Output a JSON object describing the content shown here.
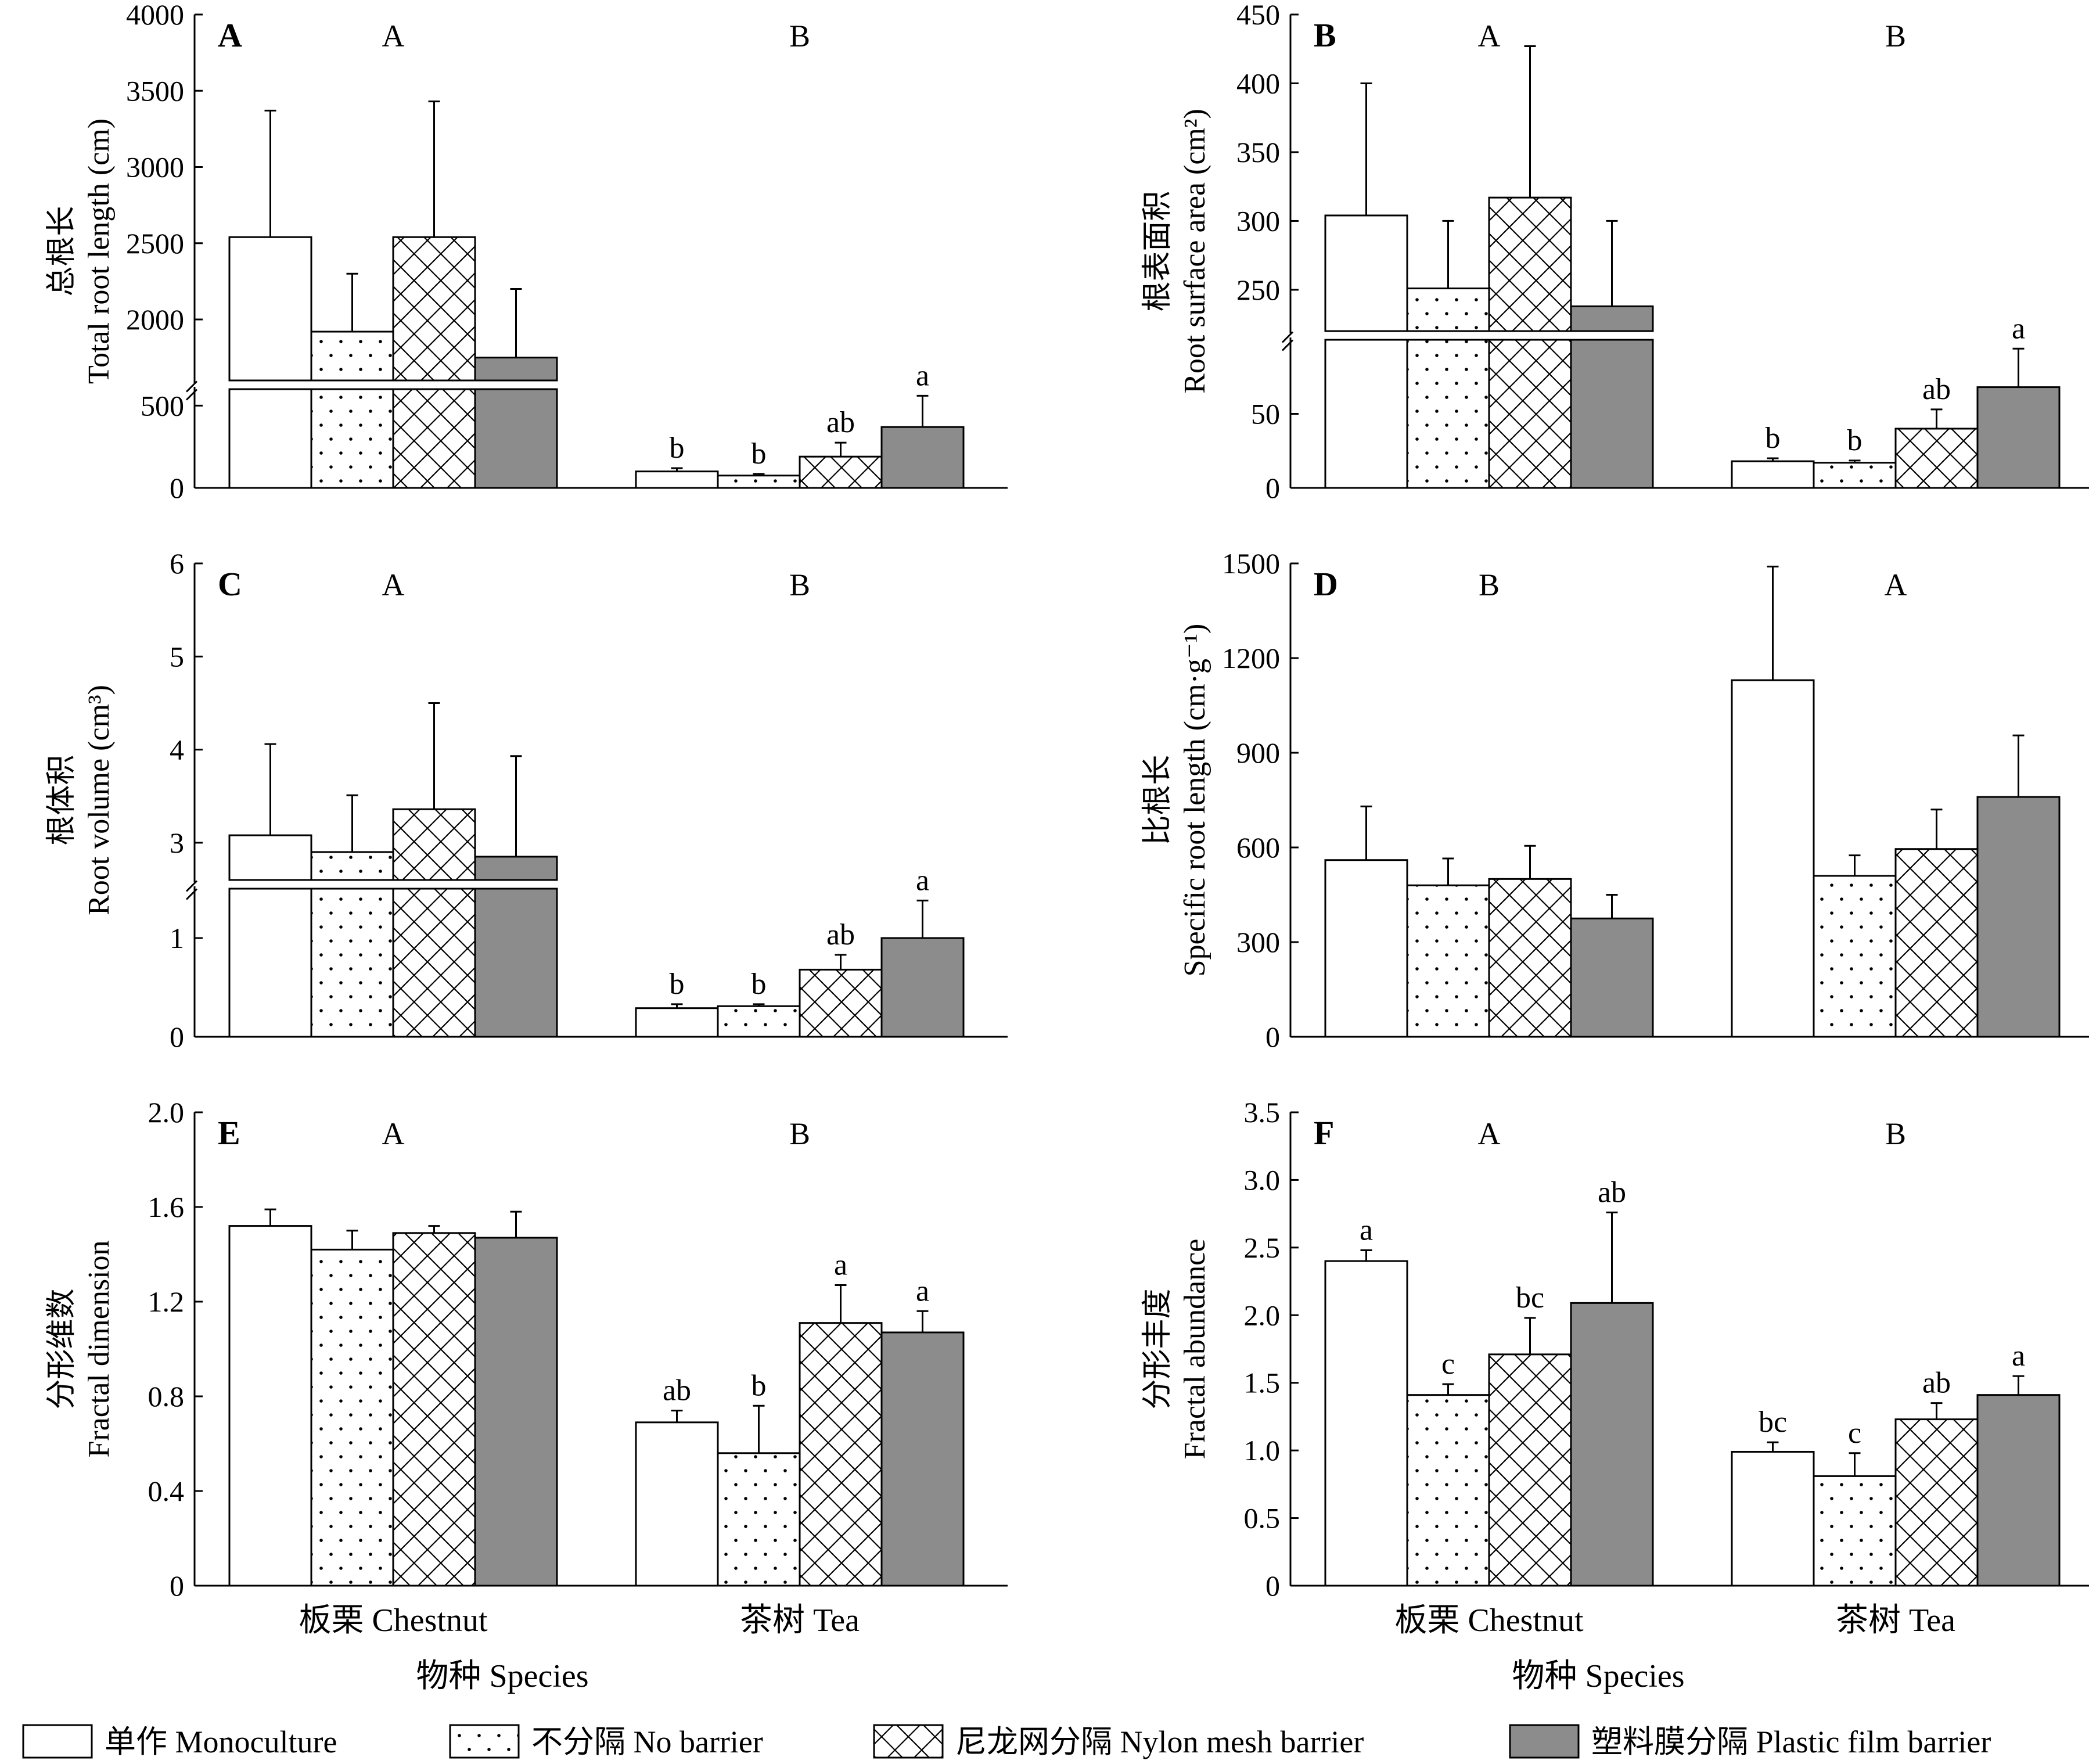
{
  "x_axis": {
    "categories": [
      "板栗 Chestnut",
      "茶树 Tea"
    ],
    "label": "物种 Species"
  },
  "legend": [
    {
      "label": "单作 Monoculture",
      "pattern": "white"
    },
    {
      "label": "不分隔 No barrier",
      "pattern": "dots"
    },
    {
      "label": "尼龙网分隔 Nylon mesh barrier",
      "pattern": "cross"
    },
    {
      "label": "塑料膜分隔 Plastic film barrier",
      "pattern": "gray"
    }
  ],
  "colors": {
    "plastic_film": "#8c8c8c",
    "bar_outline": "#000000"
  },
  "chart_data": [
    {
      "type": "bar",
      "panel": "A",
      "ylabel_cn": "总根长",
      "ylabel_en": "Total root length (cm)",
      "axis_break": true,
      "y_ticks_lower": [
        "0",
        "500"
      ],
      "y_ticks_upper": [
        "2000",
        "2500",
        "3000",
        "3500",
        "4000"
      ],
      "series": [
        {
          "name": "单作 Monoculture",
          "values": [
            2540,
            100
          ],
          "errors": [
            830,
            20
          ],
          "letters": [
            "",
            "b"
          ]
        },
        {
          "name": "不分隔 No barrier",
          "values": [
            1920,
            75
          ],
          "errors": [
            380,
            10
          ],
          "letters": [
            "",
            "b"
          ]
        },
        {
          "name": "尼龙网分隔 Nylon mesh barrier",
          "values": [
            2540,
            190
          ],
          "errors": [
            890,
            85
          ],
          "letters": [
            "",
            "ab"
          ]
        },
        {
          "name": "塑料膜分隔 Plastic film barrier",
          "values": [
            1750,
            370
          ],
          "errors": [
            450,
            190
          ],
          "letters": [
            "",
            "a"
          ]
        }
      ],
      "group_letters": [
        "A",
        "B"
      ]
    },
    {
      "type": "bar",
      "panel": "B",
      "ylabel_cn": "根表面积",
      "ylabel_en": "Root surface area (cm²)",
      "axis_break": true,
      "y_ticks_lower": [
        "0",
        "50"
      ],
      "y_ticks_upper": [
        "250",
        "300",
        "350",
        "400",
        "450"
      ],
      "series": [
        {
          "name": "单作 Monoculture",
          "values": [
            304,
            18
          ],
          "errors": [
            96,
            2
          ],
          "letters": [
            "",
            "b"
          ]
        },
        {
          "name": "不分隔 No barrier",
          "values": [
            251,
            17
          ],
          "errors": [
            49,
            1.5
          ],
          "letters": [
            "",
            "b"
          ]
        },
        {
          "name": "尼龙网分隔 Nylon mesh barrier",
          "values": [
            317,
            40
          ],
          "errors": [
            110,
            13
          ],
          "letters": [
            "",
            "ab"
          ]
        },
        {
          "name": "塑料膜分隔 Plastic film barrier",
          "values": [
            238,
            68
          ],
          "errors": [
            62,
            26
          ],
          "letters": [
            "",
            "a"
          ]
        }
      ],
      "group_letters": [
        "A",
        "B"
      ]
    },
    {
      "type": "bar",
      "panel": "C",
      "ylabel_cn": "根体积",
      "ylabel_en": "Root volume (cm³)",
      "axis_break": true,
      "y_ticks_lower": [
        "0",
        "1"
      ],
      "y_ticks_upper": [
        "3",
        "4",
        "5",
        "6"
      ],
      "series": [
        {
          "name": "单作 Monoculture",
          "values": [
            3.08,
            0.29
          ],
          "errors": [
            0.98,
            0.04
          ],
          "letters": [
            "",
            "b"
          ]
        },
        {
          "name": "不分隔 No barrier",
          "values": [
            2.9,
            0.31
          ],
          "errors": [
            0.61,
            0.02
          ],
          "letters": [
            "",
            "b"
          ]
        },
        {
          "name": "尼龙网分隔 Nylon mesh barrier",
          "values": [
            3.36,
            0.68
          ],
          "errors": [
            1.14,
            0.15
          ],
          "letters": [
            "",
            "ab"
          ]
        },
        {
          "name": "塑料膜分隔 Plastic film barrier",
          "values": [
            2.85,
            1.0
          ],
          "errors": [
            1.08,
            0.38
          ],
          "letters": [
            "",
            "a"
          ]
        }
      ],
      "group_letters": [
        "A",
        "B"
      ]
    },
    {
      "type": "bar",
      "panel": "D",
      "ylabel_cn": "比根长",
      "ylabel_en": "Specific root length (cm·g⁻¹)",
      "axis_break": false,
      "ylim": [
        0,
        1500
      ],
      "y_ticks": [
        "0",
        "300",
        "600",
        "900",
        "1200",
        "1500"
      ],
      "series": [
        {
          "name": "单作 Monoculture",
          "values": [
            560,
            1130
          ],
          "errors": [
            170,
            360
          ],
          "letters": [
            "",
            ""
          ]
        },
        {
          "name": "不分隔 No barrier",
          "values": [
            480,
            510
          ],
          "errors": [
            85,
            65
          ],
          "letters": [
            "",
            ""
          ]
        },
        {
          "name": "尼龙网分隔 Nylon mesh barrier",
          "values": [
            500,
            595
          ],
          "errors": [
            105,
            125
          ],
          "letters": [
            "",
            ""
          ]
        },
        {
          "name": "塑料膜分隔 Plastic film barrier",
          "values": [
            375,
            760
          ],
          "errors": [
            75,
            195
          ],
          "letters": [
            "",
            ""
          ]
        }
      ],
      "group_letters": [
        "B",
        "A"
      ]
    },
    {
      "type": "bar",
      "panel": "E",
      "ylabel_cn": "分形维数",
      "ylabel_en": "Fractal dimension",
      "axis_break": false,
      "ylim": [
        0,
        2.0
      ],
      "y_ticks": [
        "0",
        "0.4",
        "0.8",
        "1.2",
        "1.6",
        "2.0"
      ],
      "series": [
        {
          "name": "单作 Monoculture",
          "values": [
            1.52,
            0.69
          ],
          "errors": [
            0.07,
            0.05
          ],
          "letters": [
            "",
            "ab"
          ]
        },
        {
          "name": "不分隔 No barrier",
          "values": [
            1.42,
            0.56
          ],
          "errors": [
            0.08,
            0.2
          ],
          "letters": [
            "",
            "b"
          ]
        },
        {
          "name": "尼龙网分隔 Nylon mesh barrier",
          "values": [
            1.49,
            1.11
          ],
          "errors": [
            0.03,
            0.16
          ],
          "letters": [
            "",
            "a"
          ]
        },
        {
          "name": "塑料膜分隔 Plastic film barrier",
          "values": [
            1.47,
            1.07
          ],
          "errors": [
            0.11,
            0.09
          ],
          "letters": [
            "",
            "a"
          ]
        }
      ],
      "group_letters": [
        "A",
        "B"
      ]
    },
    {
      "type": "bar",
      "panel": "F",
      "ylabel_cn": "分形丰度",
      "ylabel_en": "Fractal abundance",
      "axis_break": false,
      "ylim": [
        0,
        3.5
      ],
      "y_ticks": [
        "0",
        "0.5",
        "1.0",
        "1.5",
        "2.0",
        "2.5",
        "3.0",
        "3.5"
      ],
      "series": [
        {
          "name": "单作 Monoculture",
          "values": [
            2.4,
            0.99
          ],
          "errors": [
            0.08,
            0.07
          ],
          "letters": [
            "a",
            "bc"
          ]
        },
        {
          "name": "不分隔 No barrier",
          "values": [
            1.41,
            0.81
          ],
          "errors": [
            0.08,
            0.17
          ],
          "letters": [
            "c",
            "c"
          ]
        },
        {
          "name": "尼龙网分隔 Nylon mesh barrier",
          "values": [
            1.71,
            1.23
          ],
          "errors": [
            0.27,
            0.12
          ],
          "letters": [
            "bc",
            "ab"
          ]
        },
        {
          "name": "塑料膜分隔 Plastic film barrier",
          "values": [
            2.09,
            1.41
          ],
          "errors": [
            0.67,
            0.14
          ],
          "letters": [
            "ab",
            "a"
          ]
        }
      ],
      "group_letters": [
        "A",
        "B"
      ]
    }
  ]
}
